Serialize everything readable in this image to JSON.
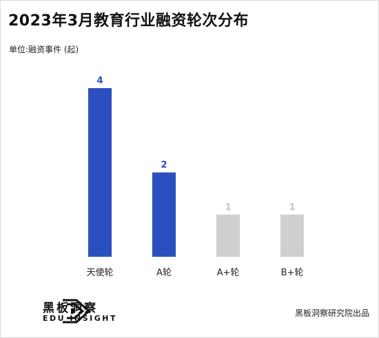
{
  "title": "2023年3月教育行业融资轮次分布",
  "unit_label": "单位:融资事件 (起)",
  "chart_data": {
    "type": "bar",
    "categories": [
      "天使轮",
      "A轮",
      "A+轮",
      "B+轮"
    ],
    "values": [
      4,
      2,
      1,
      1
    ],
    "bar_colors": [
      "#2b4fbe",
      "#2b4fbe",
      "#cfcfcf",
      "#cfcfcf"
    ],
    "label_colors": [
      "#2b4fbe",
      "#2b4fbe",
      "#c4c4c4",
      "#c4c4c4"
    ],
    "ylim": [
      0,
      4
    ],
    "grid": false
  },
  "brand": {
    "name": "黑板洞察",
    "sub": "EDU INSIGHT"
  },
  "source": "黑板洞察研究院出品"
}
